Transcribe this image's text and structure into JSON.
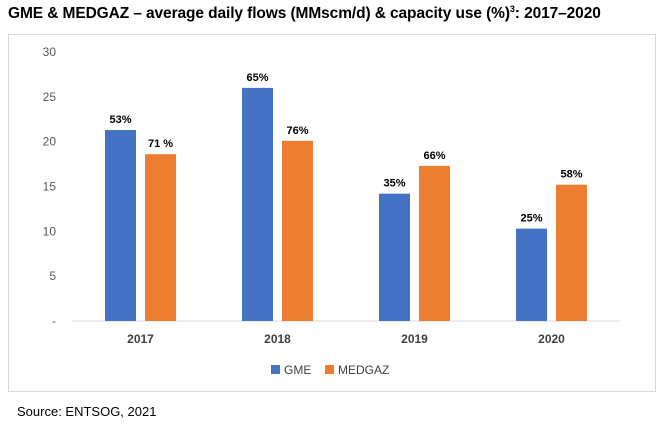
{
  "title": "GME & MEDGAZ – average daily flows (MMscm/d) & capacity use (%)",
  "title_superscript": "3",
  "title_suffix": ": 2017–2020",
  "source": "Source: ENTSOG, 2021",
  "chart_data": {
    "type": "bar",
    "title": "GME & MEDGAZ – average daily flows (MMscm/d) & capacity use (%)3: 2017–2020",
    "categories": [
      "2017",
      "2018",
      "2019",
      "2020"
    ],
    "series": [
      {
        "name": "GME",
        "color": "#4472c4",
        "values": [
          21.3,
          26.0,
          14.2,
          10.3
        ],
        "labels": [
          "53%",
          "65%",
          "35%",
          "25%"
        ]
      },
      {
        "name": "MEDGAZ",
        "color": "#ed7d31",
        "values": [
          18.6,
          20.1,
          17.3,
          15.2
        ],
        "labels": [
          "71 %",
          "76%",
          "66%",
          "58%"
        ]
      }
    ],
    "yticks": [
      "-",
      "5",
      "10",
      "15",
      "20",
      "25",
      "30"
    ],
    "ylim": [
      0,
      30
    ],
    "xlabel": "",
    "ylabel": "",
    "grid": false,
    "legend": "bottom"
  }
}
